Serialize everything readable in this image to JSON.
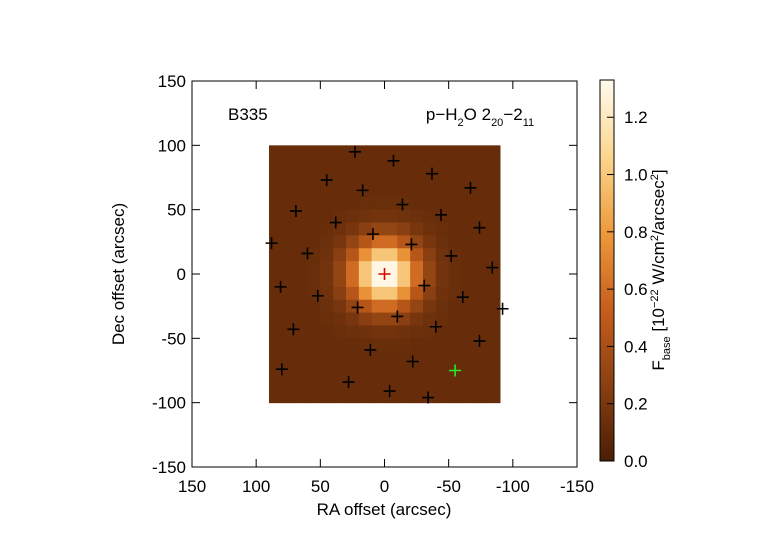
{
  "chart_data": {
    "type": "heatmap",
    "annotations": [
      {
        "text": "B335"
      }
    ],
    "title_parts": [
      {
        "text": "p−H"
      },
      {
        "text": "2",
        "sub": true
      },
      {
        "text": "O 2"
      },
      {
        "text": "20",
        "sub": true
      },
      {
        "text": "−2"
      },
      {
        "text": "11",
        "sub": true
      }
    ],
    "xlabel": "RA offset (arcsec)",
    "ylabel": "Dec offset (arcsec)",
    "xlim": [
      150,
      -150
    ],
    "ylim": [
      -150,
      150
    ],
    "xticks": [
      150,
      100,
      50,
      0,
      -50,
      -100,
      -150
    ],
    "yticks": [
      -150,
      -100,
      -50,
      0,
      50,
      100,
      150
    ],
    "x": [
      85,
      75,
      65,
      55,
      45,
      35,
      25,
      15,
      5,
      -5,
      -15,
      -25,
      -35,
      -45,
      -55,
      -65,
      -75,
      -85
    ],
    "y": [
      95,
      85,
      75,
      65,
      55,
      45,
      35,
      25,
      15,
      5,
      -5,
      -15,
      -25,
      -35,
      -45,
      -55,
      -65,
      -75,
      -85,
      -95
    ],
    "z": [
      [
        0.12,
        0.12,
        0.12,
        0.12,
        0.12,
        0.12,
        0.12,
        0.12,
        0.12,
        0.12,
        0.12,
        0.12,
        0.12,
        0.12,
        0.12,
        0.12,
        0.12,
        0.12
      ],
      [
        0.12,
        0.12,
        0.12,
        0.12,
        0.12,
        0.12,
        0.12,
        0.12,
        0.12,
        0.12,
        0.12,
        0.12,
        0.12,
        0.12,
        0.12,
        0.12,
        0.12,
        0.12
      ],
      [
        0.12,
        0.12,
        0.12,
        0.12,
        0.12,
        0.12,
        0.12,
        0.12,
        0.12,
        0.12,
        0.12,
        0.12,
        0.12,
        0.12,
        0.12,
        0.12,
        0.12,
        0.12
      ],
      [
        0.12,
        0.12,
        0.12,
        0.12,
        0.12,
        0.12,
        0.12,
        0.12,
        0.12,
        0.12,
        0.12,
        0.12,
        0.12,
        0.12,
        0.12,
        0.12,
        0.12,
        0.12
      ],
      [
        0.12,
        0.12,
        0.12,
        0.12,
        0.12,
        0.12,
        0.12,
        0.13,
        0.13,
        0.13,
        0.13,
        0.12,
        0.12,
        0.12,
        0.12,
        0.12,
        0.12,
        0.12
      ],
      [
        0.12,
        0.12,
        0.12,
        0.12,
        0.12,
        0.13,
        0.14,
        0.16,
        0.17,
        0.17,
        0.16,
        0.14,
        0.13,
        0.12,
        0.12,
        0.12,
        0.12,
        0.12
      ],
      [
        0.12,
        0.12,
        0.12,
        0.12,
        0.13,
        0.15,
        0.19,
        0.26,
        0.31,
        0.31,
        0.26,
        0.19,
        0.15,
        0.13,
        0.12,
        0.12,
        0.12,
        0.12
      ],
      [
        0.12,
        0.12,
        0.12,
        0.12,
        0.14,
        0.19,
        0.31,
        0.46,
        0.59,
        0.59,
        0.46,
        0.31,
        0.19,
        0.14,
        0.12,
        0.12,
        0.12,
        0.12
      ],
      [
        0.12,
        0.12,
        0.12,
        0.13,
        0.16,
        0.26,
        0.46,
        0.76,
        0.99,
        0.99,
        0.76,
        0.46,
        0.26,
        0.16,
        0.13,
        0.12,
        0.12,
        0.12
      ],
      [
        0.12,
        0.12,
        0.12,
        0.13,
        0.17,
        0.31,
        0.59,
        0.99,
        1.3,
        1.3,
        0.99,
        0.59,
        0.31,
        0.17,
        0.13,
        0.12,
        0.12,
        0.12
      ],
      [
        0.12,
        0.12,
        0.12,
        0.13,
        0.17,
        0.31,
        0.59,
        0.99,
        1.3,
        1.3,
        0.99,
        0.59,
        0.31,
        0.17,
        0.13,
        0.12,
        0.12,
        0.12
      ],
      [
        0.12,
        0.12,
        0.12,
        0.13,
        0.16,
        0.26,
        0.46,
        0.76,
        0.99,
        0.99,
        0.76,
        0.46,
        0.26,
        0.16,
        0.13,
        0.12,
        0.12,
        0.12
      ],
      [
        0.12,
        0.12,
        0.12,
        0.12,
        0.14,
        0.19,
        0.31,
        0.46,
        0.59,
        0.59,
        0.46,
        0.31,
        0.19,
        0.14,
        0.12,
        0.12,
        0.12,
        0.12
      ],
      [
        0.12,
        0.12,
        0.12,
        0.12,
        0.13,
        0.15,
        0.19,
        0.26,
        0.31,
        0.31,
        0.26,
        0.19,
        0.15,
        0.13,
        0.12,
        0.12,
        0.12,
        0.12
      ],
      [
        0.12,
        0.12,
        0.12,
        0.12,
        0.12,
        0.13,
        0.14,
        0.16,
        0.17,
        0.17,
        0.16,
        0.14,
        0.13,
        0.12,
        0.12,
        0.12,
        0.12,
        0.12
      ],
      [
        0.12,
        0.12,
        0.12,
        0.12,
        0.12,
        0.12,
        0.12,
        0.13,
        0.13,
        0.13,
        0.13,
        0.12,
        0.12,
        0.12,
        0.12,
        0.12,
        0.12,
        0.12
      ],
      [
        0.12,
        0.12,
        0.12,
        0.12,
        0.12,
        0.12,
        0.12,
        0.12,
        0.12,
        0.12,
        0.12,
        0.12,
        0.12,
        0.12,
        0.12,
        0.12,
        0.12,
        0.12
      ],
      [
        0.12,
        0.12,
        0.12,
        0.12,
        0.12,
        0.12,
        0.12,
        0.12,
        0.12,
        0.12,
        0.12,
        0.12,
        0.12,
        0.12,
        0.12,
        0.12,
        0.12,
        0.12
      ],
      [
        0.12,
        0.12,
        0.12,
        0.12,
        0.12,
        0.12,
        0.12,
        0.12,
        0.12,
        0.12,
        0.12,
        0.12,
        0.12,
        0.12,
        0.12,
        0.12,
        0.12,
        0.12
      ],
      [
        0.12,
        0.12,
        0.12,
        0.12,
        0.12,
        0.12,
        0.12,
        0.12,
        0.12,
        0.12,
        0.12,
        0.12,
        0.12,
        0.12,
        0.12,
        0.12,
        0.12,
        0.12
      ]
    ],
    "zlim": [
      0,
      1.33
    ],
    "colormap": [
      "#4a1e05",
      "#8a4012",
      "#c85e1c",
      "#ee9a3c",
      "#fbd68e",
      "#fffbee"
    ],
    "colorbar_ticks": [
      {
        "value": 0,
        "label": "0.0"
      },
      0.2,
      0.4,
      0.6,
      0.8,
      {
        "value": 1,
        "label": "1.0"
      },
      1.2
    ],
    "colorbar_label_parts": [
      {
        "text": "F"
      },
      {
        "text": "base",
        "sub": true
      },
      {
        "text": " [10"
      },
      {
        "text": "−22",
        "sup": true
      },
      {
        "text": " W/cm"
      },
      {
        "text": "2",
        "sup": true
      },
      {
        "text": "/arcsec"
      },
      {
        "text": "2",
        "sup": true
      },
      {
        "text": "]"
      }
    ],
    "overlays": [
      {
        "color": "#000000",
        "x": [
          23,
          -7,
          45,
          -37,
          17,
          -67,
          -14,
          69,
          -44,
          38,
          -74,
          9,
          88,
          -21,
          60,
          -52,
          -84,
          81,
          -31,
          52,
          -61,
          21,
          -92,
          -10,
          -40,
          71,
          -74,
          11,
          -22,
          80,
          28,
          -4,
          -34
        ],
        "y": [
          95,
          88,
          73,
          78,
          65,
          67,
          54,
          49,
          46,
          40,
          36,
          31,
          24,
          23,
          16,
          14,
          5,
          -10,
          -9,
          -17,
          -18,
          -26,
          -27,
          -33,
          -41,
          -43,
          -52,
          -59,
          -68,
          -74,
          -84,
          -91,
          -96
        ]
      },
      {
        "color": "#dd0000",
        "x": [
          0
        ],
        "y": [
          0
        ]
      },
      {
        "color": "#22ee22",
        "x": [
          -55
        ],
        "y": [
          -75
        ]
      }
    ]
  }
}
